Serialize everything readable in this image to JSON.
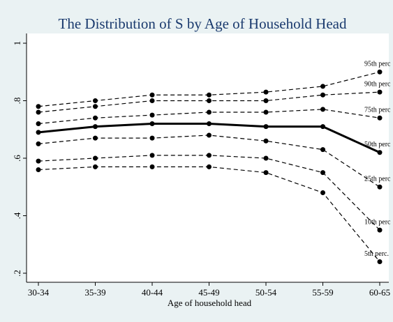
{
  "chart_data": {
    "type": "line",
    "title": "The Distribution of S by Age of Household Head",
    "x_label": "Age of household head",
    "categories": [
      "30-34",
      "35-39",
      "40-44",
      "45-49",
      "50-54",
      "55-59",
      "60-65"
    ],
    "ylim": [
      0.2,
      1
    ],
    "yticks": [
      {
        "value": 0.2,
        "label": ".2"
      },
      {
        "value": 0.4,
        "label": ".4"
      },
      {
        "value": 0.6,
        "label": ".6"
      },
      {
        "value": 0.8,
        "label": ".8"
      },
      1
    ],
    "series": [
      {
        "name": "95th perc",
        "color": "#000000",
        "style": "dashed",
        "values": [
          0.78,
          0.8,
          0.82,
          0.82,
          0.83,
          0.85,
          0.9
        ]
      },
      {
        "name": "90th perc",
        "color": "#000000",
        "style": "dashed",
        "values": [
          0.76,
          0.78,
          0.8,
          0.8,
          0.8,
          0.82,
          0.83
        ]
      },
      {
        "name": "75th perc",
        "color": "#000000",
        "style": "dashed",
        "values": [
          0.72,
          0.74,
          0.75,
          0.76,
          0.76,
          0.77,
          0.74
        ]
      },
      {
        "name": "50th perc",
        "color": "#000000",
        "style": "solid",
        "values": [
          0.69,
          0.71,
          0.72,
          0.72,
          0.71,
          0.71,
          0.62
        ]
      },
      {
        "name": "25th perc",
        "color": "#000000",
        "style": "dashed",
        "values": [
          0.65,
          0.67,
          0.67,
          0.68,
          0.66,
          0.63,
          0.5
        ]
      },
      {
        "name": "10th perc",
        "color": "#000000",
        "style": "dashed",
        "values": [
          0.59,
          0.6,
          0.61,
          0.61,
          0.6,
          0.55,
          0.35
        ]
      },
      {
        "name": "5th perc.",
        "color": "#000000",
        "style": "dashed",
        "values": [
          0.56,
          0.57,
          0.57,
          0.57,
          0.55,
          0.48,
          0.24
        ]
      }
    ]
  }
}
